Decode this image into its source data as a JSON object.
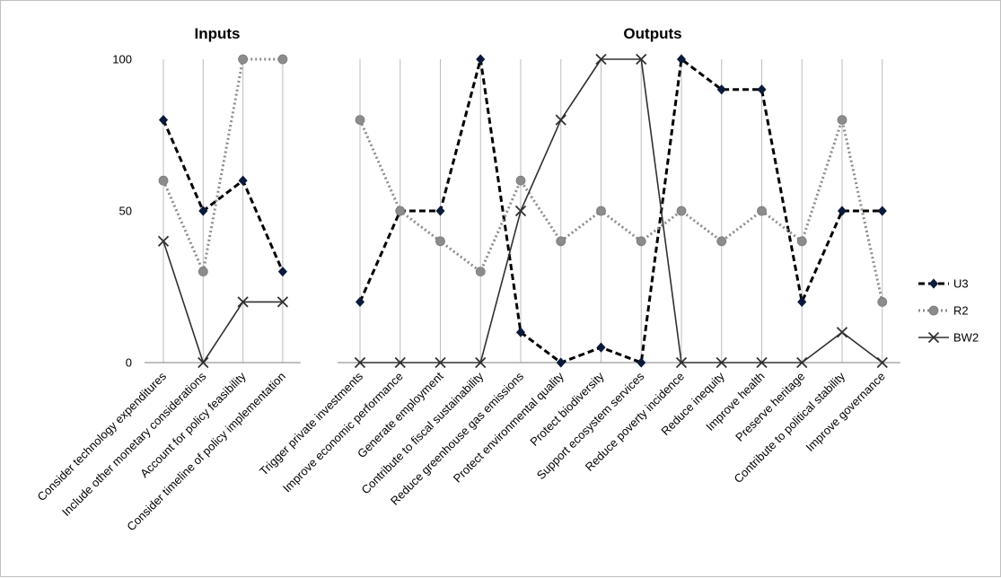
{
  "chart_data": [
    {
      "type": "line",
      "title": "Inputs",
      "ylim": [
        0,
        100
      ],
      "yticks": [
        0,
        50,
        100
      ],
      "grid": true,
      "categories": [
        "Consider technology expenditures",
        "Include other monetary considerations",
        "Account for policy feasibility",
        "Consider timeline of policy implementation"
      ],
      "series": [
        {
          "name": "U3",
          "values": [
            80,
            50,
            60,
            30
          ],
          "color": "#000000",
          "style": "dashed",
          "marker": "diamond"
        },
        {
          "name": "R2",
          "values": [
            60,
            30,
            100,
            100
          ],
          "color": "#808080",
          "style": "dotted",
          "marker": "circle"
        },
        {
          "name": "BW2",
          "values": [
            40,
            0,
            20,
            20
          ],
          "color": "#404040",
          "style": "solid",
          "marker": "x"
        }
      ]
    },
    {
      "type": "line",
      "title": "Outputs",
      "ylim": [
        0,
        100
      ],
      "grid": true,
      "categories": [
        "Trigger private investments",
        "Improve economic performance",
        "Generate employment",
        "Contribute to fiscal sustainability",
        "Reduce greenhouse gas emissions",
        "Protect environmental quality",
        "Protect biodiversity",
        "Support ecosystem services",
        "Reduce poverty incidence",
        "Reduce inequity",
        "Improve health",
        "Preserve heritage",
        "Contribute to political stability",
        "Improve governance"
      ],
      "series": [
        {
          "name": "U3",
          "values": [
            20,
            50,
            50,
            100,
            10,
            0,
            5,
            0,
            100,
            90,
            90,
            20,
            50,
            50
          ],
          "color": "#000000",
          "style": "dashed",
          "marker": "diamond"
        },
        {
          "name": "R2",
          "values": [
            80,
            50,
            40,
            30,
            60,
            40,
            50,
            40,
            50,
            40,
            50,
            40,
            80,
            20
          ],
          "color": "#808080",
          "style": "dotted",
          "marker": "circle"
        },
        {
          "name": "BW2",
          "values": [
            0,
            0,
            0,
            0,
            50,
            80,
            100,
            100,
            0,
            0,
            0,
            0,
            10,
            0
          ],
          "color": "#404040",
          "style": "solid",
          "marker": "x"
        }
      ]
    }
  ],
  "legend": {
    "placement": "right",
    "entries": [
      "U3",
      "R2",
      "BW2"
    ]
  }
}
